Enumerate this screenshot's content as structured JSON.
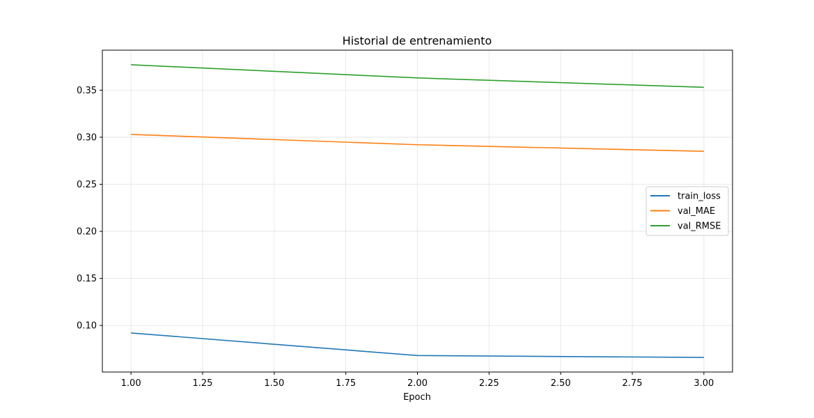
{
  "chart_data": {
    "type": "line",
    "title": "Historial de entrenamiento",
    "xlabel": "Epoch",
    "ylabel": "",
    "x": [
      1,
      2,
      3
    ],
    "series": [
      {
        "name": "train_loss",
        "color": "#1f77b4",
        "values": [
          0.092,
          0.068,
          0.066
        ]
      },
      {
        "name": "val_MAE",
        "color": "#ff7f0e",
        "values": [
          0.303,
          0.292,
          0.285
        ]
      },
      {
        "name": "val_RMSE",
        "color": "#2ca02c",
        "values": [
          0.377,
          0.363,
          0.353
        ]
      }
    ],
    "xlim": [
      0.9,
      3.1
    ],
    "ylim": [
      0.0505,
      0.3925
    ],
    "xticks": [
      1.0,
      1.25,
      1.5,
      1.75,
      2.0,
      2.25,
      2.5,
      2.75,
      3.0
    ],
    "xtick_labels": [
      "1.00",
      "1.25",
      "1.50",
      "1.75",
      "2.00",
      "2.25",
      "2.50",
      "2.75",
      "3.00"
    ],
    "yticks": [
      0.1,
      0.15,
      0.2,
      0.25,
      0.3,
      0.35
    ],
    "ytick_labels": [
      "0.10",
      "0.15",
      "0.20",
      "0.25",
      "0.30",
      "0.35"
    ],
    "grid": true,
    "legend_position": "center-right"
  }
}
